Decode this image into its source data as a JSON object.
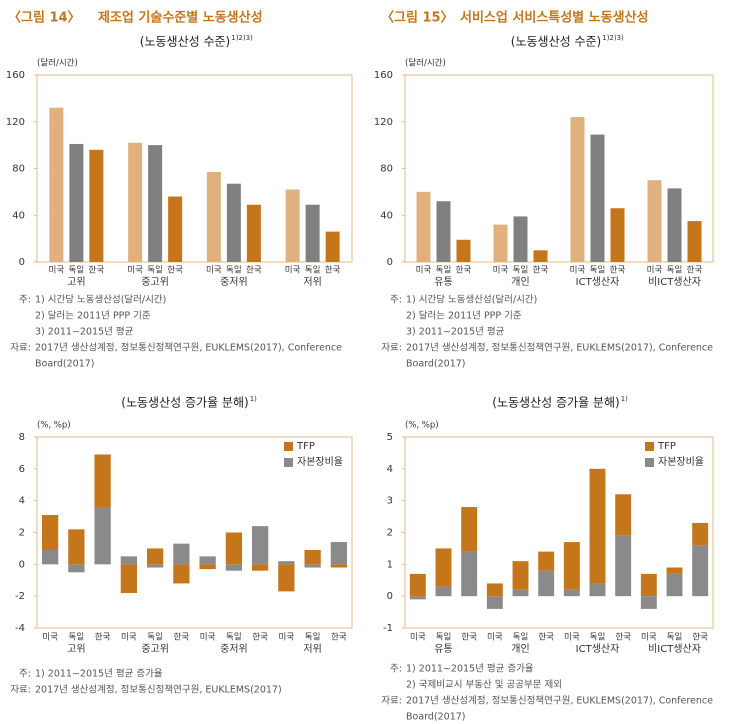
{
  "figures": [
    {
      "label": "〈그림 14〉",
      "title": "제조업 기술수준별 노동생산성"
    },
    {
      "label": "〈그림 15〉",
      "title": "서비스업 서비스특성별 노동생산성"
    }
  ],
  "chart_data": [
    {
      "type": "bar",
      "subtitle": "(노동생산성 수준)",
      "subtitle_note": "1)2)3)",
      "y_label": "(달러/시간)",
      "categories": [
        "고위",
        "중고위",
        "중저위",
        "저위"
      ],
      "series": [
        {
          "name": "미국",
          "color": "#e0b07e",
          "values": [
            132,
            102,
            77,
            62
          ]
        },
        {
          "name": "독일",
          "color": "#808080",
          "values": [
            101,
            100,
            67,
            49
          ]
        },
        {
          "name": "한국",
          "color": "#c6761a",
          "values": [
            96,
            56,
            49,
            26
          ]
        }
      ],
      "ylim": [
        0,
        160
      ],
      "yticks": [
        0,
        40,
        80,
        120,
        160
      ]
    },
    {
      "type": "bar",
      "subtitle": "(노동생산성 수준)",
      "subtitle_note": "1)2)3)",
      "y_label": "(달러/시간)",
      "categories": [
        "유통",
        "개인",
        "ICT생산자",
        "비ICT생산자"
      ],
      "series": [
        {
          "name": "미국",
          "color": "#e0b07e",
          "values": [
            60,
            32,
            124,
            70
          ]
        },
        {
          "name": "독일",
          "color": "#808080",
          "values": [
            52,
            39,
            109,
            63
          ]
        },
        {
          "name": "한국",
          "color": "#c6761a",
          "values": [
            19,
            10,
            46,
            35
          ]
        }
      ],
      "ylim": [
        0,
        160
      ],
      "yticks": [
        0,
        40,
        80,
        120,
        160
      ]
    },
    {
      "type": "stacked_bar",
      "subtitle": "(노동생산성 증가율 분해)",
      "subtitle_note": "1)",
      "y_label": "(%, %p)",
      "groups": [
        "고위",
        "중고위",
        "중저위",
        "저위"
      ],
      "categories": [
        "미국",
        "독일",
        "한국",
        "미국",
        "독일",
        "한국",
        "미국",
        "독일",
        "한국",
        "미국",
        "독일",
        "한국"
      ],
      "series": [
        {
          "name": "TFP",
          "color": "#c6761a",
          "values": [
            2.2,
            2.2,
            3.3,
            -1.8,
            1.0,
            -1.2,
            -0.3,
            2.0,
            -0.4,
            -1.7,
            0.9,
            -0.2
          ]
        },
        {
          "name": "자본장비율",
          "color": "#8a8a8a",
          "values": [
            0.9,
            -0.5,
            3.6,
            0.5,
            -0.2,
            1.3,
            0.5,
            -0.4,
            2.4,
            0.2,
            -0.2,
            1.4
          ]
        }
      ],
      "ylim": [
        -4,
        8
      ],
      "yticks": [
        -4,
        -2,
        0,
        2,
        4,
        6,
        8
      ]
    },
    {
      "type": "stacked_bar",
      "subtitle": "(노동생산성 증가율 분해)",
      "subtitle_note": "1)",
      "y_label": "(%, %p)",
      "groups": [
        "유통",
        "개인",
        "ICT생산자",
        "비ICT생산자"
      ],
      "categories": [
        "미국",
        "독일",
        "한국",
        "미국",
        "독일",
        "한국",
        "미국",
        "독일",
        "한국",
        "미국",
        "독일",
        "한국"
      ],
      "series": [
        {
          "name": "TFP",
          "color": "#c6761a",
          "values": [
            0.7,
            1.2,
            1.4,
            0.4,
            0.9,
            0.6,
            1.5,
            3.6,
            1.3,
            0.7,
            0.2,
            0.7
          ]
        },
        {
          "name": "자본장비율",
          "color": "#8a8a8a",
          "values": [
            -0.1,
            0.3,
            1.4,
            -0.4,
            0.2,
            0.8,
            0.2,
            0.4,
            1.9,
            -0.4,
            0.7,
            1.6
          ]
        }
      ],
      "ylim": [
        -1,
        5
      ],
      "yticks": [
        -1,
        0,
        1,
        2,
        3,
        4,
        5
      ]
    }
  ],
  "notes": [
    {
      "lines": [
        {
          "prefix": "주:",
          "text": "1) 시간당 노동생산성(달러/시간)"
        },
        {
          "text": "2) 달러는 2011년 PPP 기준"
        },
        {
          "text": "3) 2011∼2015년 평균"
        },
        {
          "prefix": "자료:",
          "text": "2017년 생산성계정, 정보통신정책연구원, EUKLEMS(2017), Conference"
        },
        {
          "text": "Board(2017)"
        }
      ]
    },
    {
      "lines": [
        {
          "prefix": "주:",
          "text": "1) 시간당 노동생산성(달러/시간)"
        },
        {
          "text": "2) 달러는 2011년 PPP 기준"
        },
        {
          "text": "3) 2011∼2015년 평균"
        },
        {
          "prefix": "자료:",
          "text": "2017년 생산성계정, 정보통신정책연구원, EUKLEMS(2017), Conference"
        },
        {
          "text": "Board(2017)"
        }
      ]
    },
    {
      "lines": [
        {
          "prefix": "주:",
          "text": "1) 2011∼2015년 평균 증가율"
        },
        {
          "prefix": "자료:",
          "text": "2017년 생산성계정, 정보통신정책연구원, EUKLEMS(2017)"
        }
      ]
    },
    {
      "lines": [
        {
          "prefix": "주:",
          "text": "1) 2011∼2015년 평균 증가율"
        },
        {
          "text": "2) 국제비교시 부동산 및 공공부문 제외"
        },
        {
          "prefix": "자료:",
          "text": "2017년 생산성계정, 정보통신정책연구원, EUKLEMS(2017), Conference"
        },
        {
          "text": "Board(2017)"
        }
      ]
    }
  ]
}
